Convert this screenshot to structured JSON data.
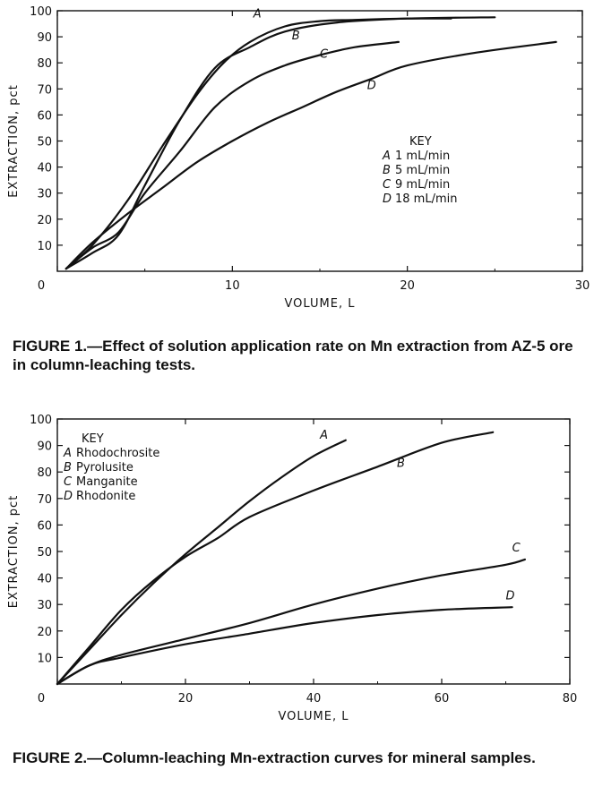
{
  "figures": [
    {
      "caption": "FIGURE 1.—Effect of solution application rate on Mn extraction from AZ-5 ore in column-leaching tests."
    },
    {
      "caption": "FIGURE 2.—Column-leaching Mn-extraction curves for mineral samples."
    }
  ],
  "chart_data": [
    {
      "type": "line",
      "xlabel": "VOLUME, L",
      "ylabel": "EXTRACTION, pct",
      "xlim": [
        0,
        30
      ],
      "ylim": [
        0,
        100
      ],
      "x_ticks": [
        0,
        10,
        20,
        30
      ],
      "y_ticks": [
        10,
        20,
        30,
        40,
        50,
        60,
        70,
        80,
        90,
        100
      ],
      "grid": false,
      "legend_title": "KEY",
      "legend_position": "right",
      "series": [
        {
          "letter": "A",
          "legend": "1 mL/min",
          "x": [
            0.5,
            2,
            4,
            6,
            8,
            9.5,
            11,
            13,
            15,
            17,
            20,
            22.5
          ],
          "y": [
            1,
            10,
            27,
            48,
            68,
            80,
            88,
            94,
            96,
            96.5,
            97,
            97
          ]
        },
        {
          "letter": "B",
          "legend": "5 mL/min",
          "x": [
            0.5,
            2,
            3.5,
            5,
            7,
            9,
            11,
            13,
            16,
            20,
            25
          ],
          "y": [
            1,
            7,
            14,
            33,
            58,
            78,
            86,
            92,
            95.5,
            97,
            97.5
          ]
        },
        {
          "letter": "C",
          "legend": "9 mL/min",
          "x": [
            0.5,
            2,
            3.5,
            5,
            7,
            9,
            11,
            13,
            15,
            17,
            19.5
          ],
          "y": [
            1,
            9,
            15,
            30,
            46,
            63,
            73,
            79,
            83,
            86,
            88
          ]
        },
        {
          "letter": "D",
          "legend": "18 mL/min",
          "x": [
            0.5,
            2,
            4,
            6,
            8,
            10,
            12,
            14,
            16,
            18,
            20,
            24,
            28.5
          ],
          "y": [
            1,
            11,
            22,
            32,
            42,
            50,
            57,
            63,
            69,
            74,
            79,
            84,
            88
          ]
        }
      ]
    },
    {
      "type": "line",
      "xlabel": "VOLUME, L",
      "ylabel": "EXTRACTION, pct",
      "xlim": [
        0,
        80
      ],
      "ylim": [
        0,
        100
      ],
      "x_ticks": [
        0,
        20,
        40,
        60,
        80
      ],
      "y_ticks": [
        10,
        20,
        30,
        40,
        50,
        60,
        70,
        80,
        90,
        100
      ],
      "grid": false,
      "legend_title": "KEY",
      "legend_position": "top-left",
      "series": [
        {
          "letter": "A",
          "legend": "Rhodochrosite",
          "x": [
            0,
            5,
            10,
            15,
            20,
            25,
            30,
            35,
            40,
            45
          ],
          "y": [
            0,
            13,
            26,
            38,
            49,
            59,
            69,
            78,
            86,
            92
          ]
        },
        {
          "letter": "B",
          "legend": "Pyrolusite",
          "x": [
            0,
            5,
            10,
            15,
            20,
            25,
            30,
            40,
            50,
            60,
            68
          ],
          "y": [
            0,
            14,
            28,
            39,
            48,
            55,
            63,
            73,
            82,
            91,
            95
          ]
        },
        {
          "letter": "C",
          "legend": "Manganite",
          "x": [
            0,
            5,
            10,
            20,
            30,
            40,
            50,
            60,
            70,
            73
          ],
          "y": [
            0,
            7,
            11,
            17,
            23,
            30,
            36,
            41,
            45,
            47
          ]
        },
        {
          "letter": "D",
          "legend": "Rhodonite",
          "x": [
            0,
            5,
            10,
            20,
            30,
            40,
            50,
            60,
            71
          ],
          "y": [
            0,
            7,
            10,
            15,
            19,
            23,
            26,
            28,
            29
          ]
        }
      ]
    }
  ]
}
